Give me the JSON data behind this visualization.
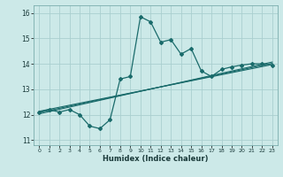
{
  "title": "",
  "xlabel": "Humidex (Indice chaleur)",
  "background_color": "#cce9e8",
  "grid_color": "#aacfcf",
  "line_color": "#1a6b6b",
  "xlim": [
    -0.5,
    23.5
  ],
  "ylim": [
    10.8,
    16.3
  ],
  "yticks": [
    11,
    12,
    13,
    14,
    15,
    16
  ],
  "xticks": [
    0,
    1,
    2,
    3,
    4,
    5,
    6,
    7,
    8,
    9,
    10,
    11,
    12,
    13,
    14,
    15,
    16,
    17,
    18,
    19,
    20,
    21,
    22,
    23
  ],
  "main_x": [
    0,
    1,
    2,
    3,
    4,
    5,
    6,
    7,
    8,
    9,
    10,
    11,
    12,
    13,
    14,
    15,
    16,
    17,
    18,
    19,
    20,
    21,
    22,
    23
  ],
  "main_y": [
    12.1,
    12.2,
    12.1,
    12.2,
    12.0,
    11.55,
    11.45,
    11.8,
    13.4,
    13.5,
    15.85,
    15.65,
    14.85,
    14.95,
    14.38,
    14.6,
    13.72,
    13.5,
    13.78,
    13.88,
    13.95,
    14.0,
    14.0,
    13.95
  ],
  "trend_lines": [
    {
      "x": [
        0,
        23
      ],
      "y": [
        12.08,
        14.02
      ]
    },
    {
      "x": [
        0,
        23
      ],
      "y": [
        12.13,
        13.97
      ]
    },
    {
      "x": [
        0,
        23
      ],
      "y": [
        12.03,
        14.07
      ]
    }
  ]
}
